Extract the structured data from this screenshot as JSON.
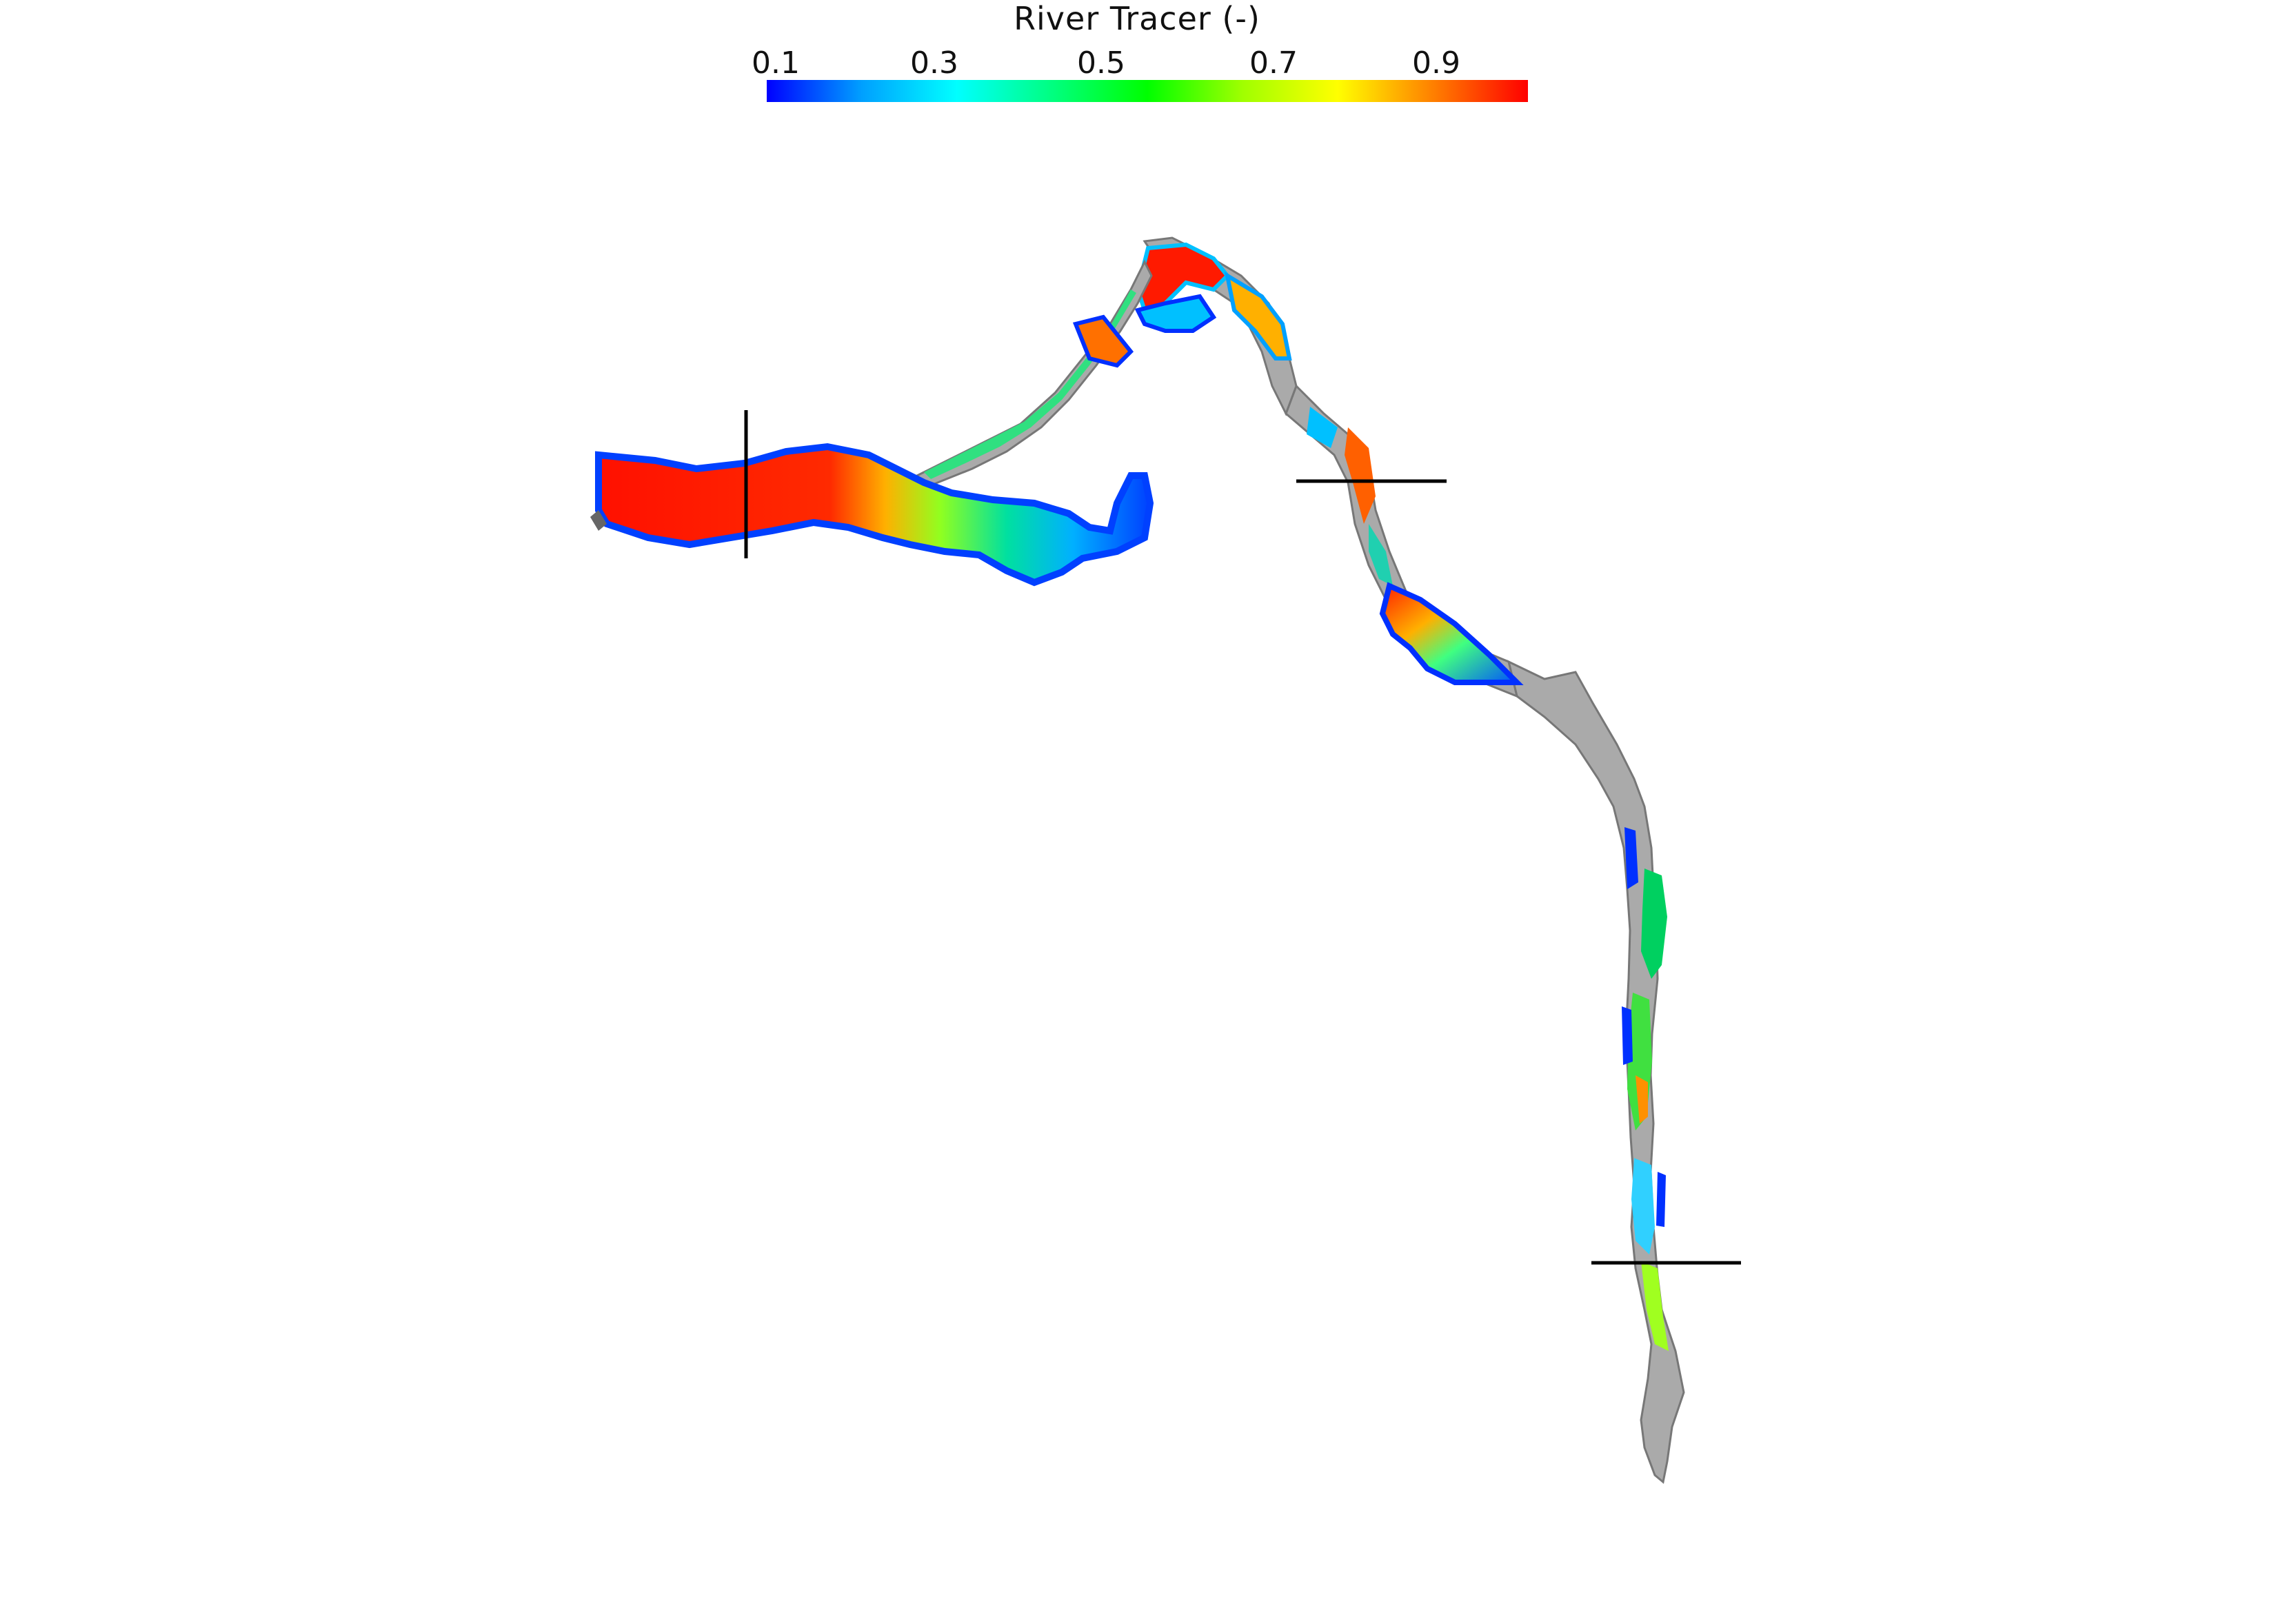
{
  "colorbar": {
    "title": "River Tracer (-)",
    "tick_labels": [
      "0.1",
      "0.3",
      "0.5",
      "0.7",
      "0.9"
    ],
    "range": [
      0.1,
      1.0
    ],
    "colormap": [
      "#0000ff",
      "#00a0ff",
      "#00ffff",
      "#00ff80",
      "#00ff00",
      "#a0ff00",
      "#ffff00",
      "#ff8000",
      "#ff0000"
    ]
  },
  "scene": {
    "land_color": "#aaaaaa",
    "section_line_color": "#000000",
    "section_line_count": 3
  }
}
